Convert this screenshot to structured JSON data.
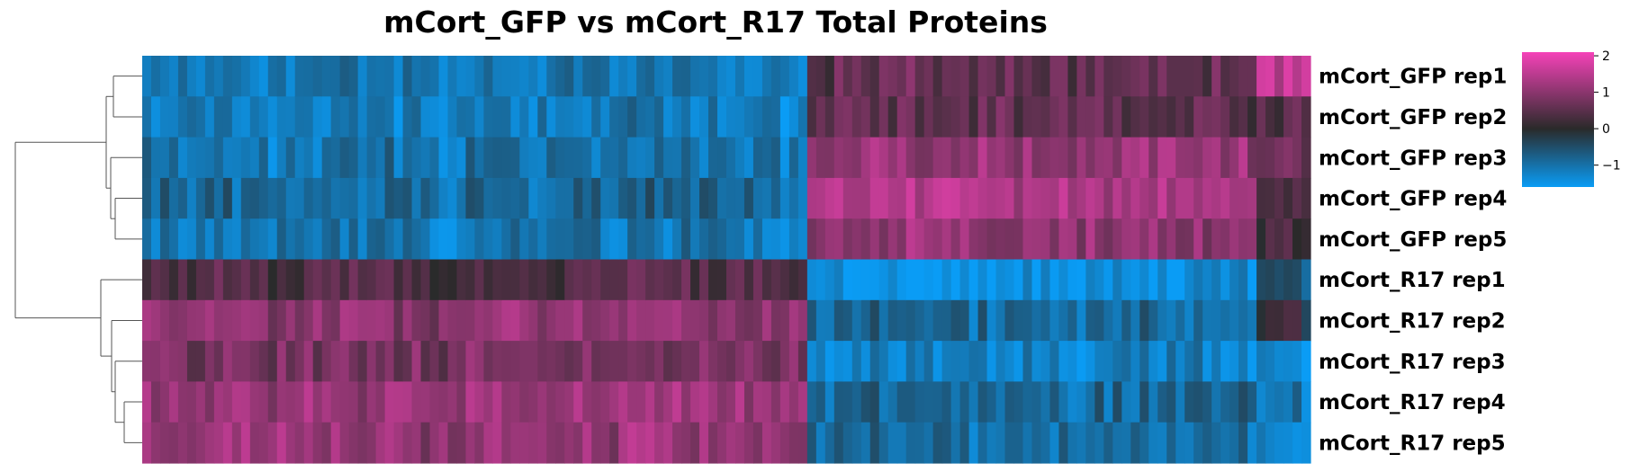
{
  "chart_data": {
    "type": "heatmap",
    "title": "mCort_GFP vs mCort_R17 Total Proteins",
    "rows": [
      "mCort_GFP rep1",
      "mCort_GFP rep2",
      "mCort_GFP rep3",
      "mCort_GFP rep4",
      "mCort_GFP rep5",
      "mCort_R17 rep1",
      "mCort_R17 rep2",
      "mCort_R17 rep3",
      "mCort_R17 rep4",
      "mCort_R17 rep5"
    ],
    "column_blocks": [
      {
        "columns": 74,
        "row_means": [
          -1.1,
          -1.15,
          -1.05,
          -0.85,
          -1.1,
          0.4,
          1.0,
          0.8,
          1.15,
          1.1
        ]
      },
      {
        "columns": 50,
        "row_means": [
          0.55,
          0.55,
          1.1,
          1.35,
          1.05,
          -1.5,
          -0.9,
          -1.2,
          -0.9,
          -0.95
        ]
      },
      {
        "columns": 6,
        "row_means": [
          1.5,
          0.3,
          0.6,
          0.2,
          0.2,
          -0.7,
          0.0,
          -1.4,
          -1.1,
          -1.3
        ]
      }
    ],
    "colorbar": {
      "range": [
        -1.6,
        2.1
      ],
      "ticks": [
        2,
        1,
        0,
        -1
      ],
      "tick_labels": [
        "2",
        "1",
        "0",
        "−1"
      ],
      "colors": {
        "low": "#0a9cf5",
        "mid": "#2a2a2a",
        "high": "#f542b8"
      }
    },
    "row_dendrogram": true,
    "legend": "colorbar-top-right"
  }
}
